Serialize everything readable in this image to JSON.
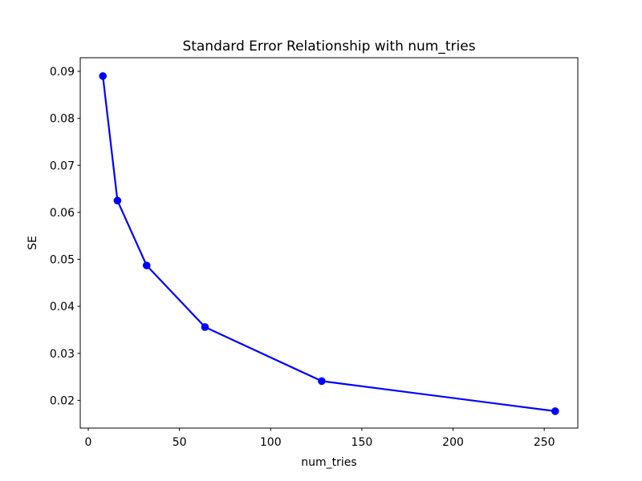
{
  "figure": {
    "background_color": "#ffffff"
  },
  "chart_data": {
    "type": "line",
    "title": "Standard Error Relationship with num_tries",
    "xlabel": "num_tries",
    "ylabel": "SE",
    "x": [
      8,
      16,
      32,
      64,
      128,
      256
    ],
    "series": [
      {
        "name": "SE",
        "values": [
          0.089,
          0.0625,
          0.0487,
          0.0356,
          0.0241,
          0.0177
        ],
        "color": "#0000ff",
        "marker": "circle",
        "line_width": 2.2,
        "marker_radius": 4.8
      }
    ],
    "xlim": [
      -4.4,
      268.4
    ],
    "ylim": [
      0.0141,
      0.0929
    ],
    "xticks": {
      "values": [
        0,
        50,
        100,
        150,
        200,
        250
      ],
      "labels": [
        "0",
        "50",
        "100",
        "150",
        "200",
        "250"
      ]
    },
    "yticks": {
      "values": [
        0.02,
        0.03,
        0.04,
        0.05,
        0.06,
        0.07,
        0.08,
        0.09
      ],
      "labels": [
        "0.02",
        "0.03",
        "0.04",
        "0.05",
        "0.06",
        "0.07",
        "0.08",
        "0.09"
      ]
    },
    "grid": false,
    "legend": "none",
    "axis_color": "#000000"
  }
}
